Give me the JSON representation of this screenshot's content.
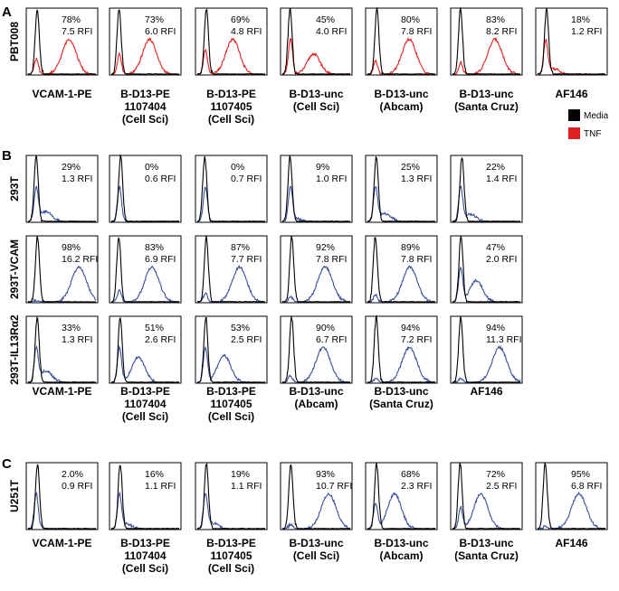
{
  "sections": [
    {
      "letter": "A",
      "row_labels": [
        "PBT008"
      ],
      "column_labels": [
        [
          "VCAM-1-PE"
        ],
        [
          "B-D13-PE",
          "1107404",
          "(Cell Sci)"
        ],
        [
          "B-D13-PE",
          "1107405",
          "(Cell Sci)"
        ],
        [
          "B-D13-unc",
          "(Cell Sci)"
        ],
        [
          "B-D13-unc",
          "(Abcam)"
        ],
        [
          "B-D13-unc",
          "(Santa Cruz)"
        ],
        [
          "AF146"
        ]
      ],
      "stats": [
        [
          [
            "78%",
            "7.5 RFI"
          ],
          [
            "73%",
            "6.0 RFI"
          ],
          [
            "69%",
            "4.8 RFI"
          ],
          [
            "45%",
            "4.0 RFI"
          ],
          [
            "80%",
            "7.8 RFI"
          ],
          [
            "83%",
            "8.2 RFI"
          ],
          [
            "18%",
            "1.2 RFI"
          ]
        ]
      ]
    },
    {
      "letter": "B",
      "row_labels": [
        "293T",
        "293T-VCAM",
        "293T-IL13Rα2"
      ],
      "column_labels": [
        [
          "VCAM-1-PE"
        ],
        [
          "B-D13-PE",
          "1107404",
          "(Cell Sci)"
        ],
        [
          "B-D13-PE",
          "1107405",
          "(Cell Sci)"
        ],
        [
          "B-D13-unc",
          "(Abcam)"
        ],
        [
          "B-D13-unc",
          "(Santa Cruz)"
        ],
        [
          "AF146"
        ]
      ],
      "stats": [
        [
          [
            "29%",
            "1.3 RFI"
          ],
          [
            "0%",
            "0.6 RFI"
          ],
          [
            "0%",
            "0.7 RFI"
          ],
          [
            "9%",
            "1.0 RFI"
          ],
          [
            "25%",
            "1.3 RFI"
          ],
          [
            "22%",
            "1.4 RFI"
          ]
        ],
        [
          [
            "98%",
            "16.2 RFI"
          ],
          [
            "83%",
            "6.9 RFI"
          ],
          [
            "87%",
            "7.7 RFI"
          ],
          [
            "92%",
            "7.8 RFI"
          ],
          [
            "89%",
            "7.8 RFI"
          ],
          [
            "47%",
            "2.0 RFI"
          ]
        ],
        [
          [
            "33%",
            "1.3 RFI"
          ],
          [
            "51%",
            "2.6 RFI"
          ],
          [
            "53%",
            "2.5 RFI"
          ],
          [
            "90%",
            "6.7 RFI"
          ],
          [
            "94%",
            "7.2 RFI"
          ],
          [
            "94%",
            "11.3 RFI"
          ]
        ]
      ]
    },
    {
      "letter": "C",
      "row_labels": [
        "U251T"
      ],
      "column_labels": [
        [
          "VCAM-1-PE"
        ],
        [
          "B-D13-PE",
          "1107404",
          "(Cell Sci)"
        ],
        [
          "B-D13-PE",
          "1107405",
          "(Cell Sci)"
        ],
        [
          "B-D13-unc",
          "(Cell Sci)"
        ],
        [
          "B-D13-unc",
          "(Abcam)"
        ],
        [
          "B-D13-unc",
          "(Santa Cruz)"
        ],
        [
          "AF146"
        ]
      ],
      "stats": [
        [
          [
            "2.0%",
            "0.9 RFI"
          ],
          [
            "16%",
            "1.1 RFI"
          ],
          [
            "19%",
            "1.1 RFI"
          ],
          [
            "93%",
            "10.7 RFI"
          ],
          [
            "68%",
            "2.3 RFI"
          ],
          [
            "72%",
            "2.5 RFI"
          ],
          [
            "95%",
            "6.8 RFI"
          ]
        ]
      ]
    }
  ],
  "legend": [
    {
      "label": "Media",
      "color": "#000000"
    },
    {
      "label": "TNF",
      "color": "#e02020"
    }
  ],
  "colors": {
    "control": "#000000",
    "tnf": "#e02020",
    "blue": "#3a4f9a"
  },
  "chart_data": {
    "type": "histogram-overlay-grid",
    "panels": [
      {
        "section": "A",
        "row": "PBT008",
        "series": [
          "Media",
          "TNF"
        ],
        "columns": [
          "VCAM-1-PE",
          "B-D13-PE 1107404 (Cell Sci)",
          "B-D13-PE 1107405 (Cell Sci)",
          "B-D13-unc (Cell Sci)",
          "B-D13-unc (Abcam)",
          "B-D13-unc (Santa Cruz)",
          "AF146"
        ],
        "percent_positive": [
          78,
          73,
          69,
          45,
          80,
          83,
          18
        ],
        "rfi": [
          7.5,
          6.0,
          4.8,
          4.0,
          7.8,
          8.2,
          1.2
        ]
      },
      {
        "section": "B",
        "row": "293T",
        "columns": [
          "VCAM-1-PE",
          "B-D13-PE 1107404 (Cell Sci)",
          "B-D13-PE 1107405 (Cell Sci)",
          "B-D13-unc (Abcam)",
          "B-D13-unc (Santa Cruz)",
          "AF146"
        ],
        "percent_positive": [
          29,
          0,
          0,
          9,
          25,
          22
        ],
        "rfi": [
          1.3,
          0.6,
          0.7,
          1.0,
          1.3,
          1.4
        ]
      },
      {
        "section": "B",
        "row": "293T-VCAM",
        "columns": [
          "VCAM-1-PE",
          "B-D13-PE 1107404 (Cell Sci)",
          "B-D13-PE 1107405 (Cell Sci)",
          "B-D13-unc (Abcam)",
          "B-D13-unc (Santa Cruz)",
          "AF146"
        ],
        "percent_positive": [
          98,
          83,
          87,
          92,
          89,
          47
        ],
        "rfi": [
          16.2,
          6.9,
          7.7,
          7.8,
          7.8,
          2.0
        ]
      },
      {
        "section": "B",
        "row": "293T-IL13Rα2",
        "columns": [
          "VCAM-1-PE",
          "B-D13-PE 1107404 (Cell Sci)",
          "B-D13-PE 1107405 (Cell Sci)",
          "B-D13-unc (Abcam)",
          "B-D13-unc (Santa Cruz)",
          "AF146"
        ],
        "percent_positive": [
          33,
          51,
          53,
          90,
          94,
          94
        ],
        "rfi": [
          1.3,
          2.6,
          2.5,
          6.7,
          7.2,
          11.3
        ]
      },
      {
        "section": "C",
        "row": "U251T",
        "columns": [
          "VCAM-1-PE",
          "B-D13-PE 1107404 (Cell Sci)",
          "B-D13-PE 1107405 (Cell Sci)",
          "B-D13-unc (Cell Sci)",
          "B-D13-unc (Abcam)",
          "B-D13-unc (Santa Cruz)",
          "AF146"
        ],
        "percent_positive": [
          2.0,
          16,
          19,
          93,
          68,
          72,
          95
        ],
        "rfi": [
          0.9,
          1.1,
          1.1,
          10.7,
          2.3,
          2.5,
          6.8
        ]
      }
    ]
  }
}
